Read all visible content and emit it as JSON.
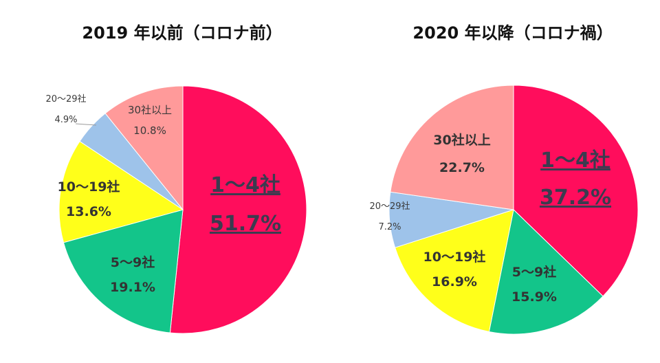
{
  "chart_data": [
    {
      "type": "pie",
      "title": "2019 年以前（コロナ前）",
      "slices": [
        {
          "label": "1～4社",
          "value": 51.7,
          "value_text": "51.7%",
          "color": "#ff0d5c"
        },
        {
          "label": "5～9社",
          "value": 19.1,
          "value_text": "19.1%",
          "color": "#13c58a"
        },
        {
          "label": "10～19社",
          "value": 13.6,
          "value_text": "13.6%",
          "color": "#ffff1a"
        },
        {
          "label": "20～29社",
          "value": 4.9,
          "value_text": "4.9%",
          "color": "#9ec3ea"
        },
        {
          "label": "30社以上",
          "value": 10.8,
          "value_text": "10.8%",
          "color": "#ff9a9a"
        }
      ]
    },
    {
      "type": "pie",
      "title": "2020 年以降（コロナ禍）",
      "slices": [
        {
          "label": "1～4社",
          "value": 37.2,
          "value_text": "37.2%",
          "color": "#ff0d5c"
        },
        {
          "label": "5～9社",
          "value": 15.9,
          "value_text": "15.9%",
          "color": "#13c58a"
        },
        {
          "label": "10～19社",
          "value": 16.9,
          "value_text": "16.9%",
          "color": "#ffff1a"
        },
        {
          "label": "20～29社",
          "value": 7.2,
          "value_text": "7.2%",
          "color": "#9ec3ea"
        },
        {
          "label": "30社以上",
          "value": 22.7,
          "value_text": "22.7%",
          "color": "#ff9a9a"
        }
      ]
    }
  ]
}
